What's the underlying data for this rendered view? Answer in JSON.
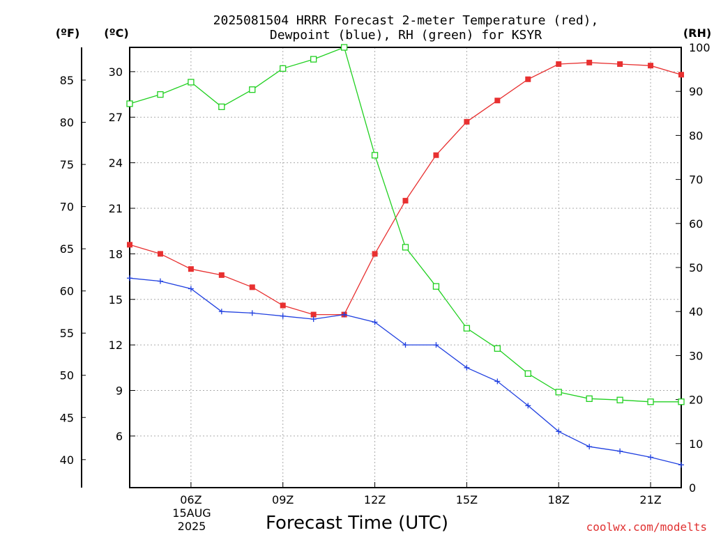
{
  "title_line1": "2025081504 HRRR Forecast 2-meter Temperature (red),",
  "title_line2": "Dewpoint (blue), RH (green) for KSYR",
  "units": {
    "fahrenheit": "(ºF)",
    "celsius": "(ºC)",
    "rh": "(RH)"
  },
  "xlabel": "Forecast Time (UTC)",
  "date_label": [
    "15AUG",
    "2025"
  ],
  "credit": "coolwx.com/modelts",
  "colors": {
    "temperature": "#e83030",
    "dewpoint": "#2040e0",
    "rh": "#20d020",
    "grid": "#aaaaaa"
  },
  "chart_data": {
    "type": "line",
    "x_hours": [
      4,
      5,
      6,
      7,
      8,
      9,
      10,
      11,
      12,
      13,
      14,
      15,
      16,
      17,
      18,
      19,
      20,
      21,
      22
    ],
    "xlim": [
      4,
      22
    ],
    "x_ticks": [
      {
        "hour": 6,
        "label": "06Z"
      },
      {
        "hour": 9,
        "label": "09Z"
      },
      {
        "hour": 12,
        "label": "12Z"
      },
      {
        "hour": 15,
        "label": "15Z"
      },
      {
        "hour": 18,
        "label": "18Z"
      },
      {
        "hour": 21,
        "label": "21Z"
      }
    ],
    "celsius_axis": {
      "ylim": [
        2.6,
        31.6
      ],
      "ticks": [
        6,
        9,
        12,
        15,
        18,
        21,
        24,
        27,
        30
      ]
    },
    "fahrenheit_ticks": [
      40,
      45,
      50,
      55,
      60,
      65,
      70,
      75,
      80,
      85
    ],
    "rh_axis": {
      "ylim": [
        0,
        100
      ],
      "ticks": [
        0,
        10,
        20,
        30,
        40,
        50,
        60,
        70,
        80,
        90,
        100
      ]
    },
    "grid": true,
    "series": [
      {
        "key": "temperature",
        "marker": "square",
        "values": [
          18.6,
          18.0,
          17.0,
          16.6,
          15.8,
          14.6,
          14.0,
          14.0,
          18.0,
          21.5,
          24.5,
          26.7,
          28.1,
          29.5,
          30.5,
          30.6,
          30.5,
          30.4,
          29.8
        ]
      },
      {
        "key": "dewpoint",
        "marker": "plus",
        "values": [
          16.4,
          16.2,
          15.7,
          14.2,
          14.1,
          13.9,
          13.7,
          14.0,
          13.5,
          12.0,
          12.0,
          10.5,
          9.6,
          8.0,
          6.3,
          5.3,
          5.0,
          4.6,
          4.1
        ]
      },
      {
        "key": "rh",
        "axis": "rh",
        "marker": "open-square",
        "values": [
          87.2,
          89.3,
          92.1,
          86.5,
          90.4,
          95.2,
          97.3,
          100.0,
          75.5,
          54.6,
          45.7,
          36.2,
          31.6,
          25.9,
          21.7,
          20.2,
          19.9,
          19.5,
          19.5
        ]
      }
    ]
  }
}
